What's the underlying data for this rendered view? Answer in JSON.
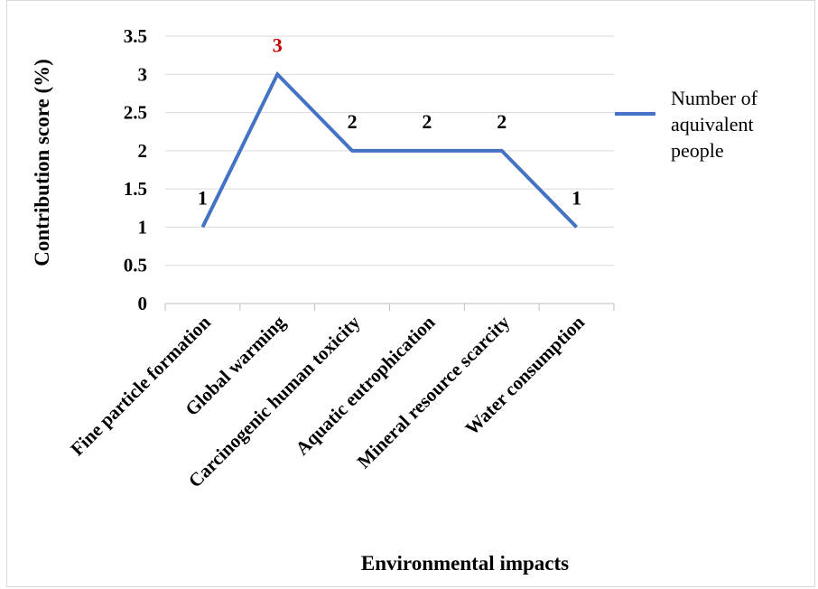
{
  "chart_data": {
    "type": "line",
    "categories": [
      "Fine particle formation",
      "Global warming",
      "Carcinogenic human toxicity",
      "Aquatic eutrophication",
      "Mineral resource scarcity",
      "Water consumption"
    ],
    "series": [
      {
        "name": "Number of aquivalent people",
        "values": [
          1,
          3,
          2,
          2,
          2,
          1
        ]
      }
    ],
    "data_labels": [
      "1",
      "3",
      "2",
      "2",
      "2",
      "1"
    ],
    "highlight_label_index": 1,
    "xlabel": "Environmental impacts",
    "ylabel": "Contribution  score (%)",
    "ylim": [
      0,
      3.5
    ],
    "yticks": [
      "0",
      "0.5",
      "1",
      "1.5",
      "2",
      "2.5",
      "3",
      "3.5"
    ],
    "grid": true,
    "legend_position": "right",
    "legend_lines": [
      "Number of",
      "aquivalent",
      "people"
    ],
    "colors": {
      "line": "#4472C4",
      "grid": "#d9d9d9",
      "highlight": "#C00000",
      "label": "#000000"
    }
  }
}
